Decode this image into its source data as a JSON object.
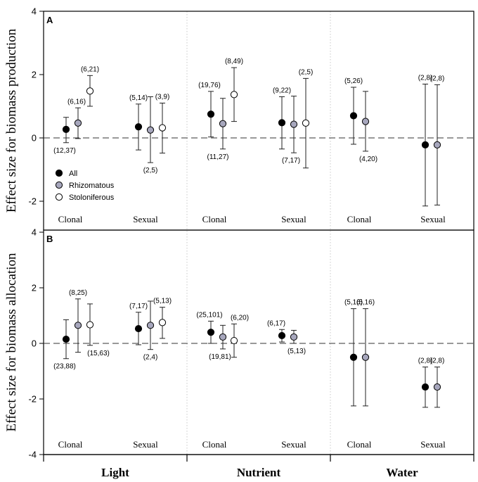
{
  "chart_data": {
    "type": "scatter",
    "x_categories": [
      "Light",
      "Nutrient",
      "Water"
    ],
    "groups": [
      "Clonal",
      "Sexual"
    ],
    "series_names": [
      "All",
      "Rhizomatous",
      "Stoloniferous"
    ],
    "series_colors": {
      "All": "#000000",
      "Rhizomatous": "#a7a7bd",
      "Stoloniferous": "#ffffff"
    },
    "panels": [
      {
        "label": "A",
        "ylabel": "Effect size for biomass production",
        "ylim": [
          -2.8,
          4
        ],
        "yticks": [
          4,
          2,
          0,
          -2
        ],
        "points": [
          {
            "factor": "Light",
            "group": "Clonal",
            "series": "All",
            "mean": 0.27,
            "lower": -0.15,
            "upper": 0.65,
            "n": "(12,37)"
          },
          {
            "factor": "Light",
            "group": "Clonal",
            "series": "Rhizomatous",
            "mean": 0.47,
            "lower": -0.02,
            "upper": 0.95,
            "n": "(6,16)"
          },
          {
            "factor": "Light",
            "group": "Clonal",
            "series": "Stoloniferous",
            "mean": 1.48,
            "lower": 1.0,
            "upper": 1.97,
            "n": "(6,21)"
          },
          {
            "factor": "Light",
            "group": "Sexual",
            "series": "All",
            "mean": 0.35,
            "lower": -0.38,
            "upper": 1.07,
            "n": "(5,14)"
          },
          {
            "factor": "Light",
            "group": "Sexual",
            "series": "Rhizomatous",
            "mean": 0.25,
            "lower": -0.78,
            "upper": 1.3,
            "n": "(2,5)"
          },
          {
            "factor": "Light",
            "group": "Sexual",
            "series": "Stoloniferous",
            "mean": 0.32,
            "lower": -0.48,
            "upper": 1.1,
            "n": "(3,9)"
          },
          {
            "factor": "Nutrient",
            "group": "Clonal",
            "series": "All",
            "mean": 0.75,
            "lower": 0.03,
            "upper": 1.47,
            "n": "(19,76)"
          },
          {
            "factor": "Nutrient",
            "group": "Clonal",
            "series": "Rhizomatous",
            "mean": 0.45,
            "lower": -0.35,
            "upper": 1.25,
            "n": "(11,27)"
          },
          {
            "factor": "Nutrient",
            "group": "Clonal",
            "series": "Stoloniferous",
            "mean": 1.37,
            "lower": 0.52,
            "upper": 2.22,
            "n": "(8,49)"
          },
          {
            "factor": "Nutrient",
            "group": "Sexual",
            "series": "All",
            "mean": 0.48,
            "lower": -0.35,
            "upper": 1.3,
            "n": "(9,22)"
          },
          {
            "factor": "Nutrient",
            "group": "Sexual",
            "series": "Rhizomatous",
            "mean": 0.43,
            "lower": -0.47,
            "upper": 1.32,
            "n": "(7,17)"
          },
          {
            "factor": "Nutrient",
            "group": "Sexual",
            "series": "Stoloniferous",
            "mean": 0.47,
            "lower": -0.95,
            "upper": 1.88,
            "n": "(2,5)"
          },
          {
            "factor": "Water",
            "group": "Clonal",
            "series": "All",
            "mean": 0.7,
            "lower": -0.2,
            "upper": 1.6,
            "n": "(5,26)"
          },
          {
            "factor": "Water",
            "group": "Clonal",
            "series": "Rhizomatous",
            "mean": 0.52,
            "lower": -0.42,
            "upper": 1.47,
            "n": "(4,20)"
          },
          {
            "factor": "Water",
            "group": "Sexual",
            "series": "All",
            "mean": -0.22,
            "lower": -2.15,
            "upper": 1.7,
            "n": "(2,8)"
          },
          {
            "factor": "Water",
            "group": "Sexual",
            "series": "Rhizomatous",
            "mean": -0.22,
            "lower": -2.12,
            "upper": 1.68,
            "n": "(2,8)"
          }
        ]
      },
      {
        "label": "B",
        "ylabel": "Effect size for biomass allocation",
        "ylim": [
          -4,
          4
        ],
        "yticks": [
          4,
          2,
          0,
          -2,
          -4
        ],
        "points": [
          {
            "factor": "Light",
            "group": "Clonal",
            "series": "All",
            "mean": 0.15,
            "lower": -0.55,
            "upper": 0.85,
            "n": "(23,88)"
          },
          {
            "factor": "Light",
            "group": "Clonal",
            "series": "Rhizomatous",
            "mean": 0.65,
            "lower": -0.32,
            "upper": 1.6,
            "n": "(8,25)"
          },
          {
            "factor": "Light",
            "group": "Clonal",
            "series": "Stoloniferous",
            "mean": 0.67,
            "lower": -0.07,
            "upper": 1.42,
            "n": "(15,63)"
          },
          {
            "factor": "Light",
            "group": "Sexual",
            "series": "All",
            "mean": 0.53,
            "lower": -0.05,
            "upper": 1.12,
            "n": "(7,17)"
          },
          {
            "factor": "Light",
            "group": "Sexual",
            "series": "Rhizomatous",
            "mean": 0.65,
            "lower": -0.22,
            "upper": 1.52,
            "n": "(2,4)"
          },
          {
            "factor": "Light",
            "group": "Sexual",
            "series": "Stoloniferous",
            "mean": 0.75,
            "lower": 0.18,
            "upper": 1.3,
            "n": "(5,13)"
          },
          {
            "factor": "Nutrient",
            "group": "Clonal",
            "series": "All",
            "mean": 0.4,
            "lower": 0.0,
            "upper": 0.8,
            "n": "(25,101)"
          },
          {
            "factor": "Nutrient",
            "group": "Clonal",
            "series": "Rhizomatous",
            "mean": 0.23,
            "lower": -0.2,
            "upper": 0.65,
            "n": "(19,81)"
          },
          {
            "factor": "Nutrient",
            "group": "Clonal",
            "series": "Stoloniferous",
            "mean": 0.1,
            "lower": -0.5,
            "upper": 0.7,
            "n": "(6,20)"
          },
          {
            "factor": "Nutrient",
            "group": "Sexual",
            "series": "All",
            "mean": 0.28,
            "lower": 0.05,
            "upper": 0.5,
            "n": "(6,17)"
          },
          {
            "factor": "Nutrient",
            "group": "Sexual",
            "series": "Rhizomatous",
            "mean": 0.23,
            "lower": 0.0,
            "upper": 0.47,
            "n": "(5,13)"
          },
          {
            "factor": "Water",
            "group": "Clonal",
            "series": "All",
            "mean": -0.5,
            "lower": -2.25,
            "upper": 1.25,
            "n": "(5,16)"
          },
          {
            "factor": "Water",
            "group": "Clonal",
            "series": "Rhizomatous",
            "mean": -0.5,
            "lower": -2.25,
            "upper": 1.25,
            "n": "(5,16)"
          },
          {
            "factor": "Water",
            "group": "Sexual",
            "series": "All",
            "mean": -1.57,
            "lower": -2.3,
            "upper": -0.85,
            "n": "(2,8)"
          },
          {
            "factor": "Water",
            "group": "Sexual",
            "series": "Rhizomatous",
            "mean": -1.57,
            "lower": -2.3,
            "upper": -0.85,
            "n": "(2,8)"
          }
        ]
      }
    ]
  }
}
